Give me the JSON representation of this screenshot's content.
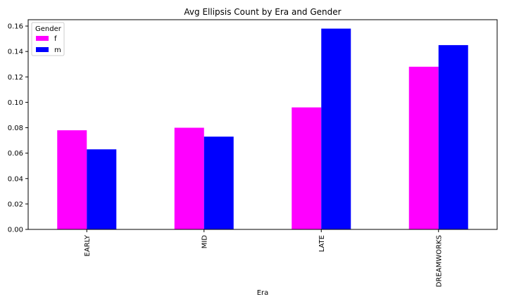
{
  "chart_data": {
    "type": "bar",
    "title": "Avg Ellipsis Count by Era and Gender",
    "xlabel": "Era",
    "ylabel": "",
    "categories": [
      "EARLY",
      "MID",
      "LATE",
      "DREAMWORKS"
    ],
    "series": [
      {
        "name": "f",
        "color": "#ff00ff",
        "values": [
          0.078,
          0.08,
          0.096,
          0.128
        ]
      },
      {
        "name": "m",
        "color": "#0000ff",
        "values": [
          0.063,
          0.073,
          0.158,
          0.145
        ]
      }
    ],
    "ylim": [
      0,
      0.165
    ],
    "yticks": [
      "0.00",
      "0.02",
      "0.04",
      "0.06",
      "0.08",
      "0.10",
      "0.12",
      "0.14",
      "0.16"
    ],
    "legend": {
      "title": "Gender",
      "placement": "top-left"
    },
    "grid": false
  }
}
